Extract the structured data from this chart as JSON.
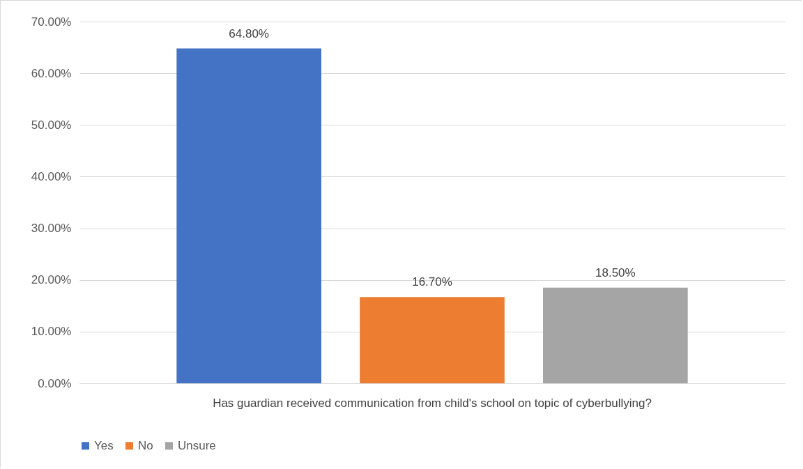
{
  "chart_data": {
    "type": "bar",
    "categories": [
      "Has guardian received communication from child's school on topic of cyberbullying?"
    ],
    "series": [
      {
        "name": "Yes",
        "color": "#4472c4",
        "values": [
          64.8
        ],
        "value_labels": [
          "64.80%"
        ]
      },
      {
        "name": "No",
        "color": "#ed7d31",
        "values": [
          16.7
        ],
        "value_labels": [
          "16.70%"
        ]
      },
      {
        "name": "Unsure",
        "color": "#a5a5a5",
        "values": [
          18.5
        ],
        "value_labels": [
          "18.50%"
        ]
      }
    ],
    "ylim": [
      0,
      70
    ],
    "yticks": [
      {
        "value": 0,
        "label": "0.00%"
      },
      {
        "value": 10,
        "label": "10.00%"
      },
      {
        "value": 20,
        "label": "20.00%"
      },
      {
        "value": 30,
        "label": "30.00%"
      },
      {
        "value": 40,
        "label": "40.00%"
      },
      {
        "value": 50,
        "label": "50.00%"
      },
      {
        "value": 60,
        "label": "60.00%"
      },
      {
        "value": 70,
        "label": "70.00%"
      }
    ],
    "grid": true,
    "legend": "bottom"
  }
}
